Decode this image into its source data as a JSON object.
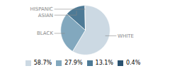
{
  "chart_data": {
    "type": "pie",
    "categories": [
      "WHITE",
      "BLACK",
      "ASIAN",
      "HISPANIC"
    ],
    "values": [
      58.7,
      27.9,
      13.1,
      0.4
    ],
    "value_labels": [
      "58.7%",
      "27.9%",
      "13.1%",
      "0.4%"
    ],
    "colors": [
      "#ccd9e3",
      "#82a8be",
      "#4d7a96",
      "#2a5270"
    ],
    "annotations": [
      {
        "text": "WHITE",
        "color": "#888888"
      },
      {
        "text": "ASIAN",
        "color": "#888888"
      },
      {
        "text": "HISPANIC",
        "color": "#888888"
      },
      {
        "text": "BLACK",
        "color": "#888888"
      }
    ],
    "legend": "bottom"
  }
}
